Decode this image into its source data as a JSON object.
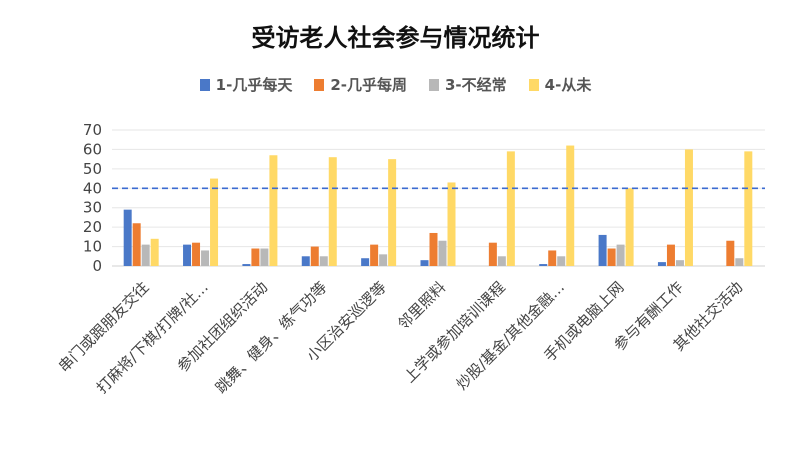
{
  "chart_data": {
    "type": "bar",
    "title": "受访老人社会参与情况统计",
    "categories": [
      "串门或跟朋友交往",
      "打麻将/下棋/打牌/社…",
      "参加社团组织活动",
      "跳舞、健身、练气功等",
      "小区治安巡逻等",
      "邻里照料",
      "上学或参加培训课程",
      "炒股/基金/其他金融…",
      "手机或电脑上网",
      "参与有酬工作",
      "其他社交活动"
    ],
    "series": [
      {
        "name": "1-几乎每天",
        "color": "#4a78c8",
        "values": [
          29,
          11,
          1,
          5,
          4,
          3,
          0,
          1,
          16,
          2,
          0
        ]
      },
      {
        "name": "2-几乎每周",
        "color": "#ed7d31",
        "values": [
          22,
          12,
          9,
          10,
          11,
          17,
          12,
          8,
          9,
          11,
          13
        ]
      },
      {
        "name": "3-不经常",
        "color": "#b8b8b8",
        "values": [
          11,
          8,
          9,
          5,
          6,
          13,
          5,
          5,
          11,
          3,
          4
        ]
      },
      {
        "name": "4-从未",
        "color": "#ffd966",
        "values": [
          14,
          45,
          57,
          56,
          55,
          43,
          59,
          62,
          40,
          60,
          59
        ]
      }
    ],
    "yticks": [
      0,
      10,
      20,
      30,
      40,
      50,
      60,
      70
    ],
    "ylim": [
      0,
      70
    ],
    "reference_line": {
      "value": 40,
      "color": "#3b6bd1",
      "style": "dashed"
    },
    "grid": true,
    "legend_position": "top"
  }
}
